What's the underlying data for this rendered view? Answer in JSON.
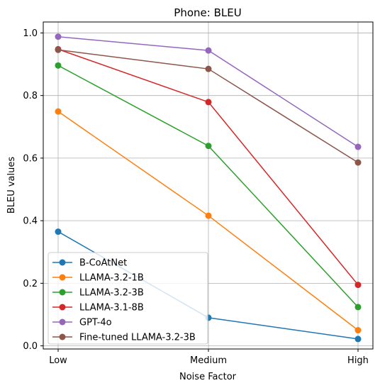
{
  "chart_data": {
    "type": "line",
    "title": "Phone: BLEU",
    "xlabel": "Noise Factor",
    "ylabel": "BLEU values",
    "categories": [
      "Low",
      "Medium",
      "High"
    ],
    "ylim": [
      -0.01,
      1.035
    ],
    "yticks": [
      "0.0",
      "0.2",
      "0.4",
      "0.6",
      "0.8",
      "1.0"
    ],
    "grid": true,
    "legend_position": "lower-left",
    "series": [
      {
        "name": "B-CoAtNet",
        "color": "#1f77b4",
        "values": [
          0.365,
          0.09,
          0.022
        ]
      },
      {
        "name": "LLAMA-3.2-1B",
        "color": "#ff7f0e",
        "values": [
          0.749,
          0.416,
          0.05
        ]
      },
      {
        "name": "LLAMA-3.2-3B",
        "color": "#2ca02c",
        "values": [
          0.896,
          0.639,
          0.124
        ]
      },
      {
        "name": "LLAMA-3.1-8B",
        "color": "#d62728",
        "values": [
          0.948,
          0.779,
          0.195
        ]
      },
      {
        "name": "GPT-4o",
        "color": "#9467bd",
        "values": [
          0.988,
          0.944,
          0.636
        ]
      },
      {
        "name": "Fine-tuned LLAMA-3.2-3B",
        "color": "#8c564b",
        "values": [
          0.946,
          0.885,
          0.586
        ]
      }
    ]
  }
}
